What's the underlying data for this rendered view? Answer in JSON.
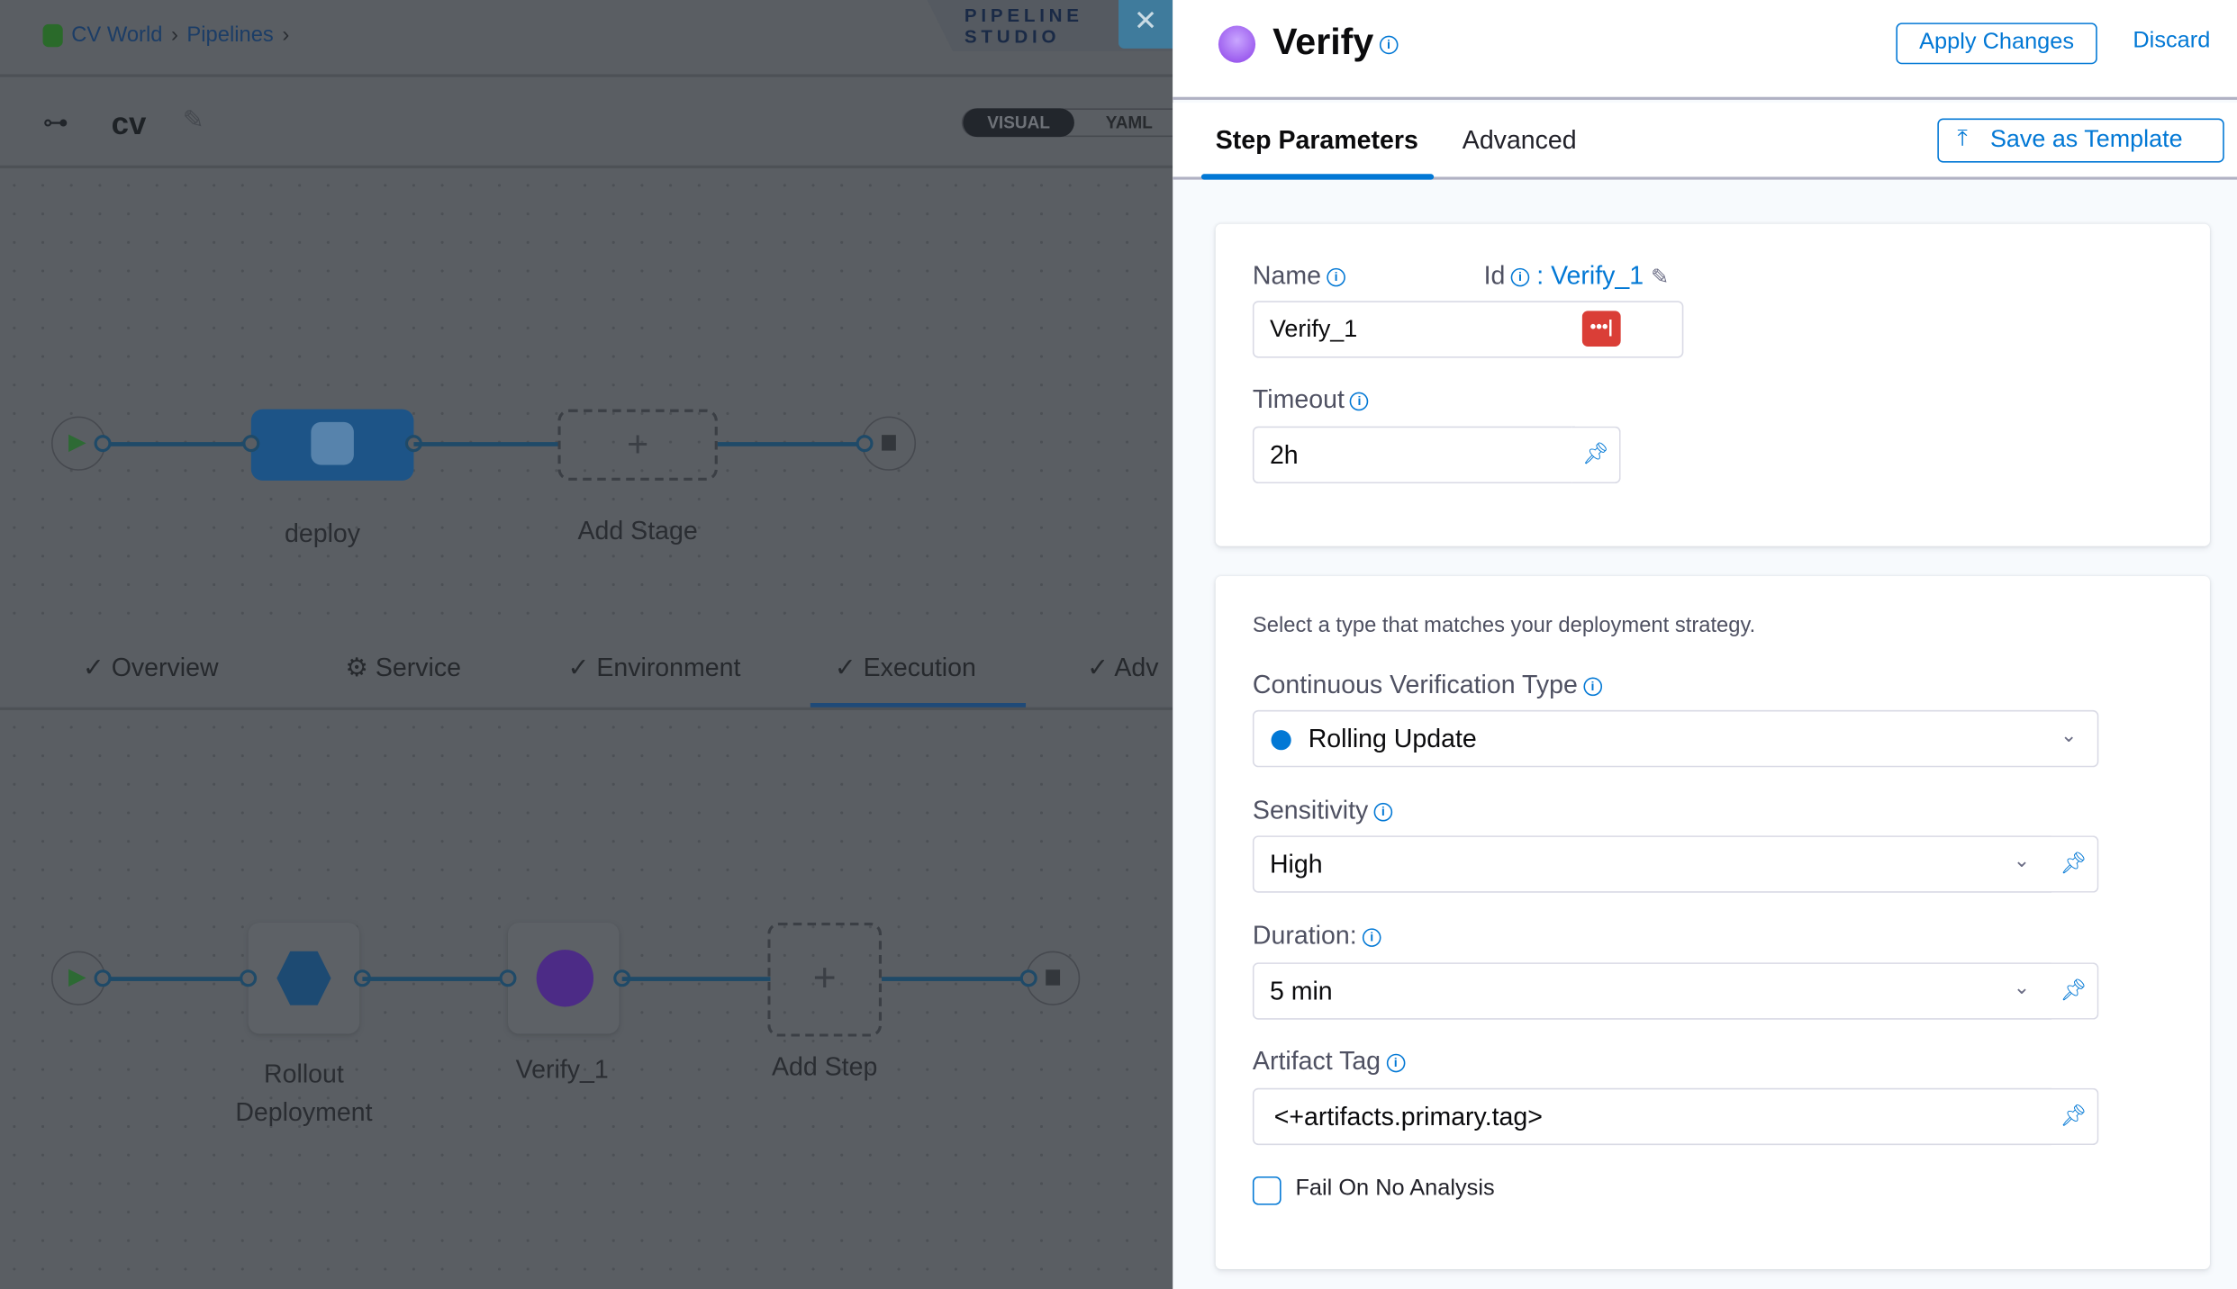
{
  "breadcrumbs": [
    "CV World",
    "Pipelines"
  ],
  "studio_label": "PIPELINE STUDIO",
  "pipeline": {
    "name": "cv",
    "view_modes": [
      "VISUAL",
      "YAML"
    ],
    "active_view": "VISUAL"
  },
  "stage_graph": {
    "stages": [
      {
        "label": "deploy"
      }
    ],
    "add_stage": "Add Stage"
  },
  "stage_tabs": [
    {
      "label": "Overview",
      "icon": "check"
    },
    {
      "label": "Service",
      "icon": "gear"
    },
    {
      "label": "Environment",
      "icon": "check"
    },
    {
      "label": "Execution",
      "icon": "check",
      "active": true
    },
    {
      "label": "Adv",
      "icon": "check"
    }
  ],
  "step_graph": {
    "steps": [
      {
        "label": "Rollout Deployment",
        "icon": "rolling-icon"
      },
      {
        "label": "Verify_1",
        "icon": "verify-icon"
      }
    ],
    "add_step": "Add Step"
  },
  "panel": {
    "title": "Verify",
    "apply": "Apply Changes",
    "discard": "Discard",
    "tabs": [
      "Step Parameters",
      "Advanced"
    ],
    "active_tab": "Step Parameters",
    "save_template": "Save as Template",
    "name_label": "Name",
    "id_label": "Id",
    "id_value": ": Verify_1",
    "name_value": "Verify_1",
    "timeout_label": "Timeout",
    "timeout_value": "2h",
    "strategy_hint": "Select a type that matches your deployment strategy.",
    "cv_type_label": "Continuous Verification Type",
    "cv_type_value": "Rolling Update",
    "sensitivity_label": "Sensitivity",
    "sensitivity_value": "High",
    "duration_label": "Duration:",
    "duration_value": "5 min",
    "artifact_label": "Artifact Tag",
    "artifact_value": "<+artifacts.primary.tag>",
    "fail_label": "Fail On No Analysis",
    "fail_checked": false
  },
  "colors": {
    "accent": "#0278d5",
    "overlay": "#5a5e63",
    "danger": "#da3e37"
  }
}
